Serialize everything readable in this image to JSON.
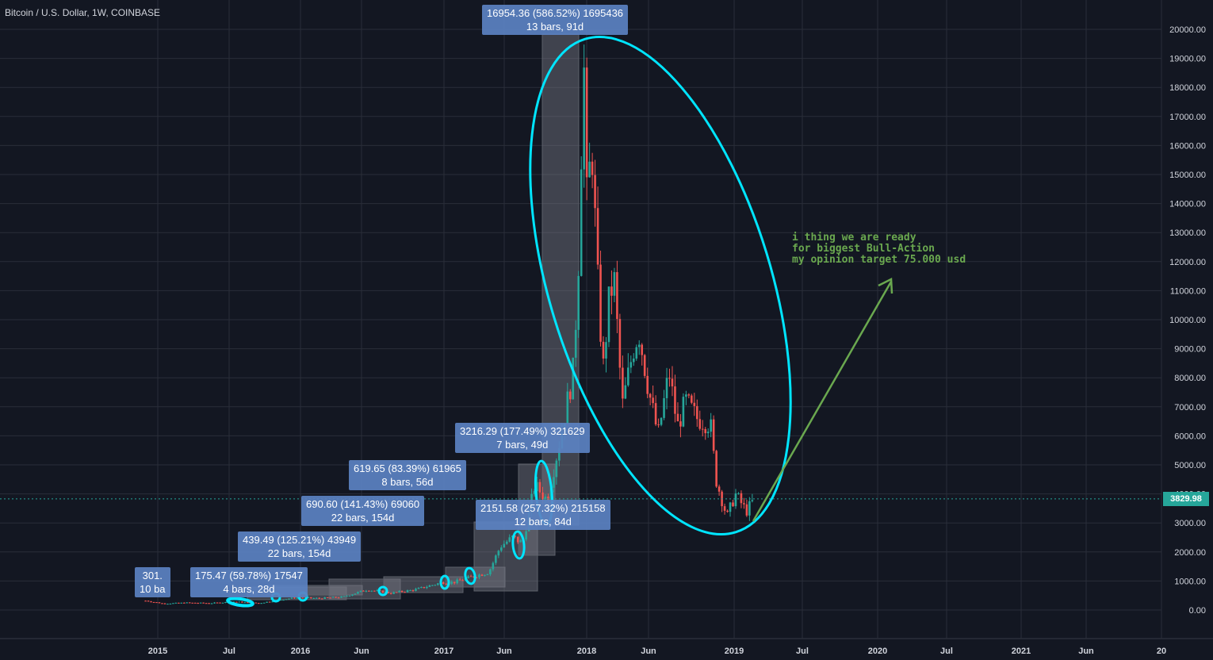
{
  "header": {
    "title": "Bitcoin / U.S. Dollar, 1W, COINBASE"
  },
  "colors": {
    "up": "#26a69a",
    "down": "#ef5350",
    "grid": "#2a2e39",
    "ellipse": "#00e5ff",
    "arrow": "#6aa84f",
    "measure": "#5b82c2"
  },
  "chart_data": {
    "type": "candlestick",
    "title": "Bitcoin / U.S. Dollar, 1W, COINBASE",
    "ylim": [
      -1000,
      21000
    ],
    "y_ticks": [
      "0.00",
      "1000.00",
      "2000.00",
      "3000.00",
      "4000.00",
      "5000.00",
      "6000.00",
      "7000.00",
      "8000.00",
      "9000.00",
      "10000.00",
      "11000.00",
      "12000.00",
      "13000.00",
      "14000.00",
      "15000.00",
      "16000.00",
      "17000.00",
      "18000.00",
      "19000.00",
      "20000.00"
    ],
    "x_ticks": [
      "2015",
      "Jul",
      "2016",
      "Jun",
      "2017",
      "Jun",
      "2018",
      "Jun",
      "2019",
      "Jul",
      "2020",
      "Jul",
      "2021",
      "Jun",
      "20"
    ],
    "last_price": "3829.98",
    "closes": [
      [
        "2014-12-01",
        320
      ],
      [
        "2015-01-15",
        220
      ],
      [
        "2015-03-15",
        250
      ],
      [
        "2015-05-15",
        235
      ],
      [
        "2015-07-15",
        285
      ],
      [
        "2015-09-15",
        235
      ],
      [
        "2015-11-10",
        360
      ],
      [
        "2015-12-20",
        430
      ],
      [
        "2016-02-15",
        400
      ],
      [
        "2016-04-15",
        450
      ],
      [
        "2016-06-15",
        700
      ],
      [
        "2016-08-15",
        580
      ],
      [
        "2016-10-15",
        700
      ],
      [
        "2016-12-25",
        960
      ],
      [
        "2017-01-20",
        950
      ],
      [
        "2017-03-10",
        1150
      ],
      [
        "2017-04-20",
        1300
      ],
      [
        "2017-05-20",
        2200
      ],
      [
        "2017-06-20",
        2500
      ],
      [
        "2017-07-15",
        2300
      ],
      [
        "2017-08-15",
        4300
      ],
      [
        "2017-09-15",
        3800
      ],
      [
        "2017-10-20",
        6000
      ],
      [
        "2017-11-20",
        8200
      ],
      [
        "2017-12-03",
        11500
      ],
      [
        "2017-12-17",
        19300
      ],
      [
        "2017-12-24",
        14000
      ],
      [
        "2018-01-07",
        16000
      ],
      [
        "2018-01-21",
        11500
      ],
      [
        "2018-02-04",
        8200
      ],
      [
        "2018-02-18",
        10500
      ],
      [
        "2018-03-04",
        11500
      ],
      [
        "2018-03-25",
        7000
      ],
      [
        "2018-04-22",
        9000
      ],
      [
        "2018-05-06",
        9600
      ],
      [
        "2018-06-01",
        7500
      ],
      [
        "2018-06-24",
        6000
      ],
      [
        "2018-07-22",
        8200
      ],
      [
        "2018-08-12",
        6300
      ],
      [
        "2018-09-02",
        7200
      ],
      [
        "2018-10-01",
        6600
      ],
      [
        "2018-11-04",
        6400
      ],
      [
        "2018-11-18",
        4500
      ],
      [
        "2018-12-16",
        3200
      ],
      [
        "2019-01-06",
        4000
      ],
      [
        "2019-02-03",
        3400
      ],
      [
        "2019-02-24",
        3830
      ]
    ]
  },
  "measurements": [
    {
      "line1": "301.",
      "line2": "10 ba"
    },
    {
      "line1": "175.47 (59.78%) 17547",
      "line2": "4 bars, 28d"
    },
    {
      "line1": "439.49 (125.21%) 43949",
      "line2": "22 bars, 154d"
    },
    {
      "line1": "690.60 (141.43%) 69060",
      "line2": "22 bars, 154d"
    },
    {
      "line1": "619.65 (83.39%) 61965",
      "line2": "8 bars, 56d"
    },
    {
      "line1": "2151.58 (257.32%) 215158",
      "line2": "12 bars, 84d"
    },
    {
      "line1": "3216.29 (177.49%) 321629",
      "line2": "7 bars, 49d"
    },
    {
      "line1": "16954.36 (586.52%) 1695436",
      "line2": "13 bars, 91d"
    }
  ],
  "annotation": {
    "lines": [
      "i thing we are ready",
      "for biggest Bull-Action",
      "my opinion target 75.000 usd"
    ]
  }
}
